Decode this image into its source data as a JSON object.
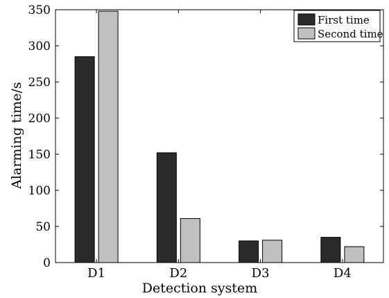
{
  "chart_data": {
    "type": "bar",
    "title": "",
    "xlabel": "Detection system",
    "ylabel": "Alarming time/s",
    "categories": [
      "D1",
      "D2",
      "D3",
      "D4"
    ],
    "series": [
      {
        "name": "First time",
        "values": [
          285,
          152,
          30,
          35
        ],
        "color": "#2b2b2b"
      },
      {
        "name": "Second time",
        "values": [
          348,
          61,
          31,
          22
        ],
        "color": "#c0c0c0"
      }
    ],
    "ylim": [
      0,
      350
    ],
    "yticks": [
      "0",
      "50",
      "100",
      "150",
      "200",
      "250",
      "300",
      "350"
    ],
    "grid": false,
    "legend": "top-right"
  }
}
